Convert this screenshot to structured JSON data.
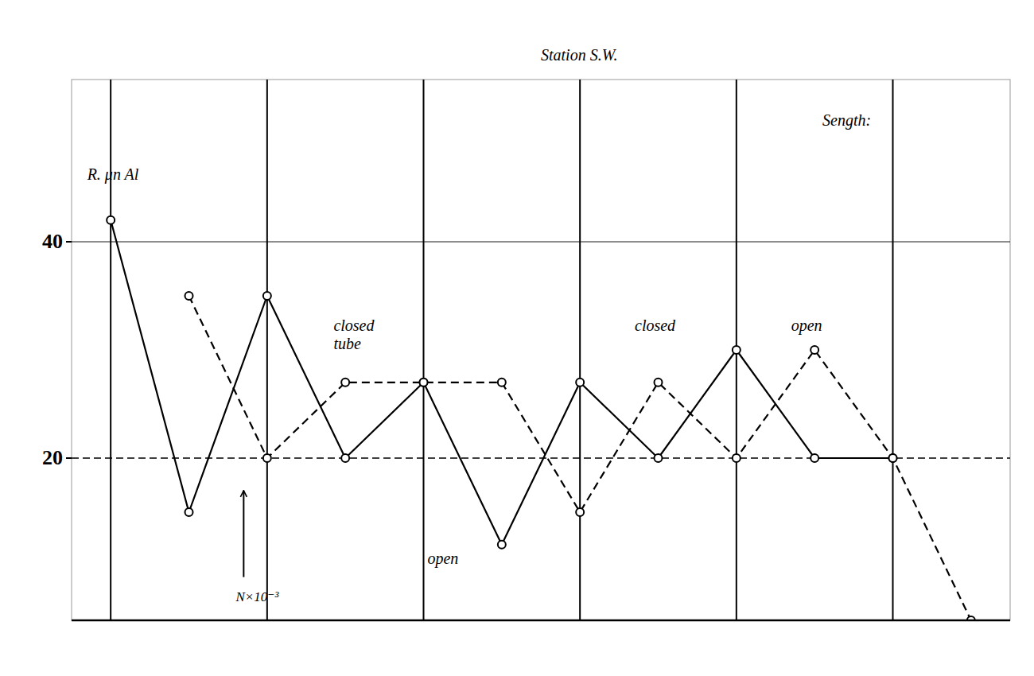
{
  "chart_data": {
    "type": "line",
    "xlim": [
      -0.5,
      11.5
    ],
    "ylim": [
      5,
      55
    ],
    "yticks": [
      20,
      40
    ],
    "tick_labels": "y",
    "grid": false,
    "series": [
      {
        "x": [
          0,
          1,
          2,
          3,
          4,
          5,
          6,
          7,
          8,
          9,
          10
        ],
        "values": [
          42,
          15,
          35,
          20,
          27,
          12,
          27,
          20,
          30,
          20,
          20
        ],
        "color": "black",
        "line_style": "solid",
        "marker": "circle"
      },
      {
        "x": [
          1,
          2,
          3,
          4,
          5,
          6,
          7,
          8,
          9,
          10,
          11
        ],
        "values": [
          35,
          20,
          27,
          27,
          27,
          15,
          27,
          20,
          30,
          20,
          5
        ],
        "color": "black",
        "line_style": "dashed",
        "marker": "circle"
      }
    ],
    "vlines": [
      0,
      2,
      4,
      6,
      8,
      10
    ],
    "hlines": [
      {
        "y": 20,
        "line_style": "dashed"
      },
      {
        "y": 40,
        "line_style": "solid"
      }
    ],
    "arrows": [
      {
        "x": 1.7,
        "y_from": 9,
        "y_to": 17
      }
    ],
    "annotations": [
      {
        "text": "R. μn Al",
        "x": -0.3,
        "y": 47
      },
      {
        "text": "N×10⁻³",
        "x": 1.6,
        "y": 8
      },
      {
        "text": "closed\ntube",
        "x": 2.85,
        "y": 33
      },
      {
        "text": "open",
        "x": 4.05,
        "y": 11.5
      },
      {
        "text": "closed",
        "x": 6.7,
        "y": 33
      },
      {
        "text": "open",
        "x": 8.7,
        "y": 33
      },
      {
        "text": "Sength:",
        "x": 9.1,
        "y": 52
      },
      {
        "text": "Station S.W.",
        "x": 5.5,
        "y": 58
      }
    ]
  }
}
